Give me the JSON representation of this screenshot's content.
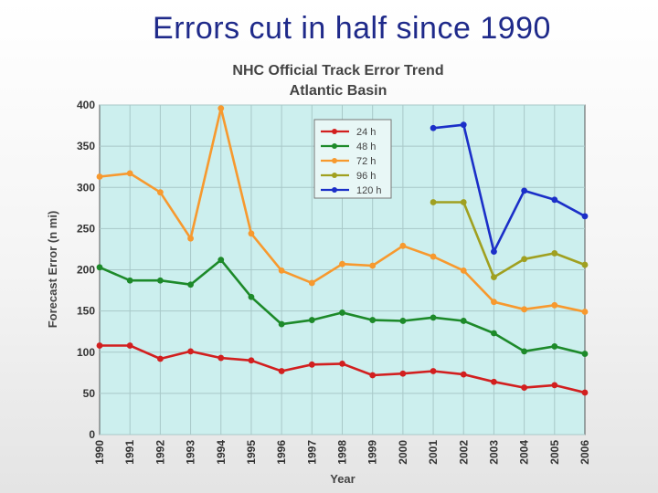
{
  "slide": {
    "title": "Errors cut in half since 1990"
  },
  "chart_data": {
    "type": "line",
    "title": "NHC Official Track Error Trend",
    "subtitle": "Atlantic Basin",
    "xlabel": "Year",
    "ylabel": "Forecast Error (n mi)",
    "ylim": [
      0,
      400
    ],
    "yticks": [
      0,
      50,
      100,
      150,
      200,
      250,
      300,
      350,
      400
    ],
    "categories": [
      "1990",
      "1991",
      "1992",
      "1993",
      "1994",
      "1995",
      "1996",
      "1997",
      "1998",
      "1999",
      "2000",
      "2001",
      "2002",
      "2003",
      "2004",
      "2005",
      "2006"
    ],
    "grid": true,
    "legend_position": "top-center",
    "colors": {
      "plot_background": "#ccefee",
      "grid": "#a8c8c8"
    },
    "series": [
      {
        "name": "24 h",
        "color": "#d21f1f",
        "values": [
          108,
          108,
          92,
          101,
          93,
          90,
          77,
          85,
          86,
          72,
          74,
          77,
          73,
          64,
          57,
          60,
          51
        ]
      },
      {
        "name": "48 h",
        "color": "#1d8a2a",
        "values": [
          203,
          187,
          187,
          182,
          212,
          167,
          134,
          139,
          148,
          139,
          138,
          142,
          138,
          123,
          101,
          107,
          98
        ]
      },
      {
        "name": "72 h",
        "color": "#f7992e",
        "values": [
          313,
          317,
          294,
          238,
          396,
          244,
          199,
          184,
          207,
          205,
          229,
          216,
          199,
          161,
          152,
          157,
          149
        ]
      },
      {
        "name": "96 h",
        "color": "#a0a020",
        "values": [
          null,
          null,
          null,
          null,
          null,
          null,
          null,
          null,
          null,
          null,
          null,
          282,
          282,
          191,
          213,
          220,
          206
        ]
      },
      {
        "name": "120 h",
        "color": "#1b2fc8",
        "values": [
          null,
          null,
          null,
          null,
          null,
          null,
          null,
          null,
          null,
          null,
          null,
          372,
          376,
          222,
          296,
          285,
          265
        ]
      }
    ]
  }
}
